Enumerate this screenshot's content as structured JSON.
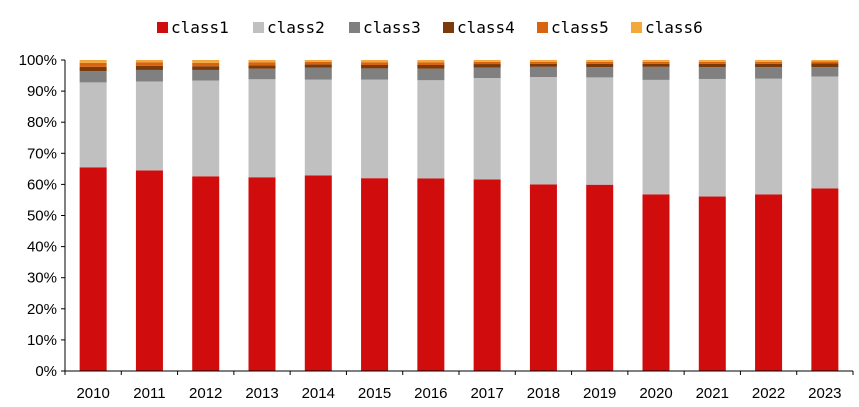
{
  "chart_data": {
    "type": "bar",
    "stacked": true,
    "categories": [
      "2010",
      "2011",
      "2012",
      "2013",
      "2014",
      "2015",
      "2016",
      "2017",
      "2018",
      "2019",
      "2020",
      "2021",
      "2022",
      "2023"
    ],
    "y_tick_labels": [
      "0%",
      "10%",
      "20%",
      "30%",
      "40%",
      "50%",
      "60%",
      "70%",
      "80%",
      "90%",
      "100%"
    ],
    "ylim": [
      0,
      100
    ],
    "legend_position": "top",
    "grid": false,
    "series": [
      {
        "name": "class1",
        "color": "#d10c0c",
        "values": [
          65.5,
          64.5,
          62.6,
          62.3,
          62.9,
          62.0,
          61.9,
          61.6,
          60.0,
          59.9,
          56.8,
          56.1,
          56.8,
          58.7
        ]
      },
      {
        "name": "class2",
        "color": "#c0c0c0",
        "values": [
          27.3,
          28.6,
          30.8,
          31.5,
          30.8,
          31.7,
          31.6,
          32.6,
          34.5,
          34.5,
          36.8,
          37.8,
          37.2,
          36.0
        ]
      },
      {
        "name": "class3",
        "color": "#808080",
        "values": [
          3.6,
          3.7,
          3.4,
          3.4,
          3.8,
          3.6,
          3.7,
          3.4,
          3.3,
          3.3,
          4.2,
          3.8,
          3.7,
          3.0
        ]
      },
      {
        "name": "class4",
        "color": "#7a3a0a",
        "values": [
          1.4,
          1.3,
          1.2,
          1.1,
          1.1,
          1.1,
          1.2,
          1.1,
          1.0,
          1.1,
          1.0,
          1.1,
          1.1,
          1.2
        ]
      },
      {
        "name": "class5",
        "color": "#d9640f",
        "values": [
          1.3,
          1.2,
          1.1,
          1.0,
          0.8,
          0.9,
          0.9,
          0.7,
          0.6,
          0.6,
          0.6,
          0.6,
          0.6,
          0.6
        ]
      },
      {
        "name": "class6",
        "color": "#f2a83a",
        "values": [
          0.9,
          0.7,
          0.9,
          0.7,
          0.6,
          0.7,
          0.7,
          0.6,
          0.6,
          0.6,
          0.6,
          0.6,
          0.6,
          0.5
        ]
      }
    ]
  }
}
